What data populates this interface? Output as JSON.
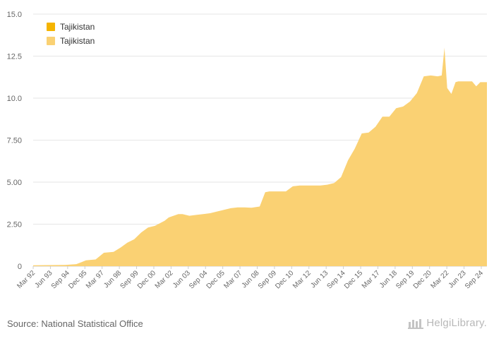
{
  "chart_data": {
    "type": "area",
    "title": "",
    "xlabel": "",
    "ylabel": "",
    "ylim": [
      0,
      15
    ],
    "yticks": [
      "0",
      "2.50",
      "5.00",
      "7.50",
      "10.0",
      "12.5",
      "15.0"
    ],
    "ytick_values": [
      0,
      2.5,
      5,
      7.5,
      10,
      12.5,
      15
    ],
    "xticks": [
      "Mar 92",
      "Jun 93",
      "Sep 94",
      "Dec 95",
      "Mar 97",
      "Jun 98",
      "Sep 99",
      "Dec 00",
      "Mar 02",
      "Jun 03",
      "Sep 04",
      "Dec 05",
      "Mar 07",
      "Jun 08",
      "Sep 09",
      "Dec 10",
      "Mar 12",
      "Jun 13",
      "Sep 14",
      "Dec 15",
      "Mar 17",
      "Jun 18",
      "Sep 19",
      "Dec 20",
      "Mar 22",
      "Jun 23",
      "Sep 24"
    ],
    "x_start": 1992.17,
    "x_end": 2025.08,
    "grid": true,
    "legend_position": "top-left",
    "series": [
      {
        "name": "Tajikistan",
        "color": "#f5b400",
        "x": [],
        "values": []
      },
      {
        "name": "Tajikistan",
        "color": "#fad173",
        "x": [
          1992.17,
          1994.5,
          1995.3,
          1995.7,
          1996.0,
          1996.7,
          1997.0,
          1997.3,
          1998.0,
          1998.5,
          1999.0,
          1999.5,
          2000.0,
          2000.5,
          2001.0,
          2001.7,
          2002.0,
          2002.7,
          2003.0,
          2003.5,
          2004.0,
          2004.5,
          2005.0,
          2005.5,
          2006.0,
          2006.5,
          2007.0,
          2007.5,
          2008.0,
          2008.6,
          2009.0,
          2009.3,
          2010.0,
          2010.5,
          2011.0,
          2011.5,
          2012.0,
          2012.5,
          2013.0,
          2013.5,
          2014.0,
          2014.5,
          2015.0,
          2015.5,
          2016.0,
          2016.5,
          2017.0,
          2017.5,
          2018.0,
          2018.5,
          2019.0,
          2019.5,
          2020.0,
          2020.5,
          2021.0,
          2021.5,
          2021.8,
          2022.0,
          2022.2,
          2022.5,
          2022.8,
          2023.0,
          2023.5,
          2024.0,
          2024.3,
          2024.6,
          2025.08
        ],
        "values": [
          0.05,
          0.07,
          0.12,
          0.25,
          0.35,
          0.4,
          0.6,
          0.8,
          0.85,
          1.1,
          1.4,
          1.6,
          2.0,
          2.3,
          2.4,
          2.7,
          2.9,
          3.1,
          3.1,
          3.0,
          3.05,
          3.1,
          3.15,
          3.25,
          3.35,
          3.45,
          3.5,
          3.5,
          3.48,
          3.55,
          4.4,
          4.45,
          4.45,
          4.45,
          4.75,
          4.8,
          4.8,
          4.8,
          4.8,
          4.85,
          4.95,
          5.3,
          6.3,
          7.0,
          7.9,
          7.95,
          8.3,
          8.9,
          8.9,
          9.4,
          9.5,
          9.8,
          10.3,
          11.3,
          11.35,
          11.3,
          11.35,
          13.0,
          10.6,
          10.25,
          10.95,
          11.0,
          11.0,
          11.0,
          10.7,
          10.95,
          10.95
        ]
      }
    ]
  },
  "footer": {
    "source": "Source: National Statistical Office",
    "brand": "HelgiLibrary."
  },
  "colors": {
    "grid": "#e6e6e6",
    "axis_text": "#666666",
    "baseline": "#cccccc"
  }
}
